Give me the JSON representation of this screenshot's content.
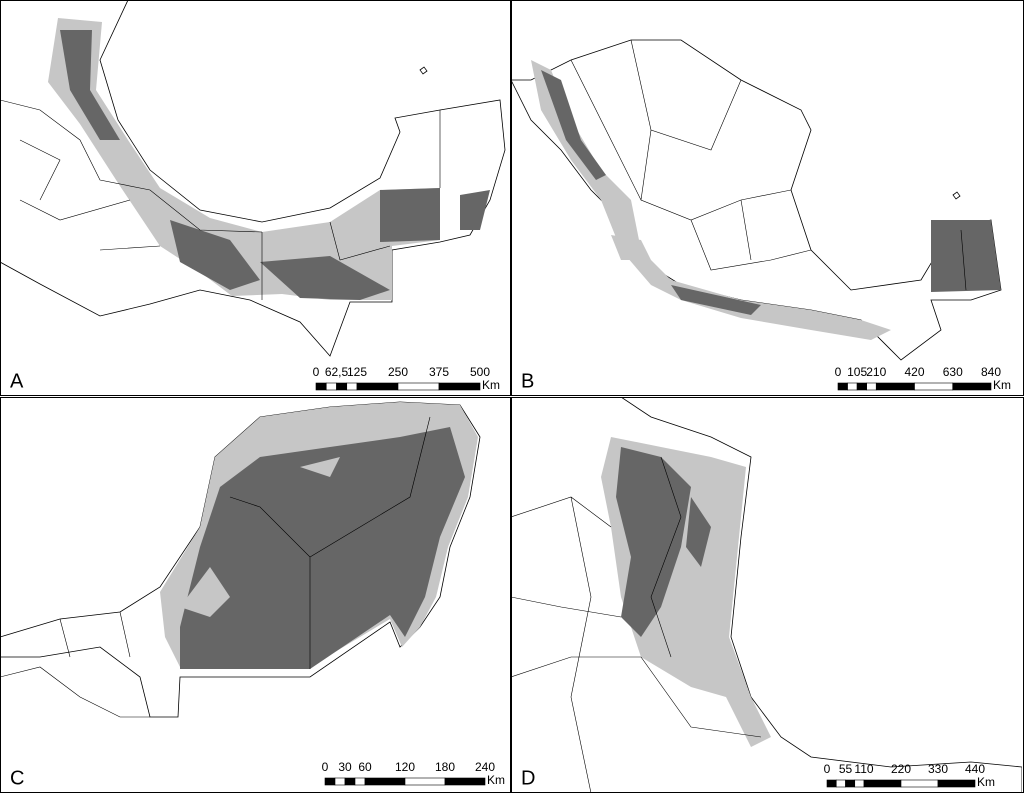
{
  "panels": [
    {
      "label": "A",
      "scale_bar": {
        "ticks": [
          "0",
          "62,5",
          "125",
          "250",
          "375",
          "500"
        ],
        "unit": "Km"
      }
    },
    {
      "label": "B",
      "scale_bar": {
        "ticks": [
          "0",
          "105",
          "210",
          "420",
          "630",
          "840"
        ],
        "unit": "Km"
      }
    },
    {
      "label": "C",
      "scale_bar": {
        "ticks": [
          "0",
          "30",
          "60",
          "120",
          "180",
          "240"
        ],
        "unit": "Km"
      }
    },
    {
      "label": "D",
      "scale_bar": {
        "ticks": [
          "0",
          "55",
          "110",
          "220",
          "330",
          "440"
        ],
        "unit": "Km"
      }
    }
  ]
}
